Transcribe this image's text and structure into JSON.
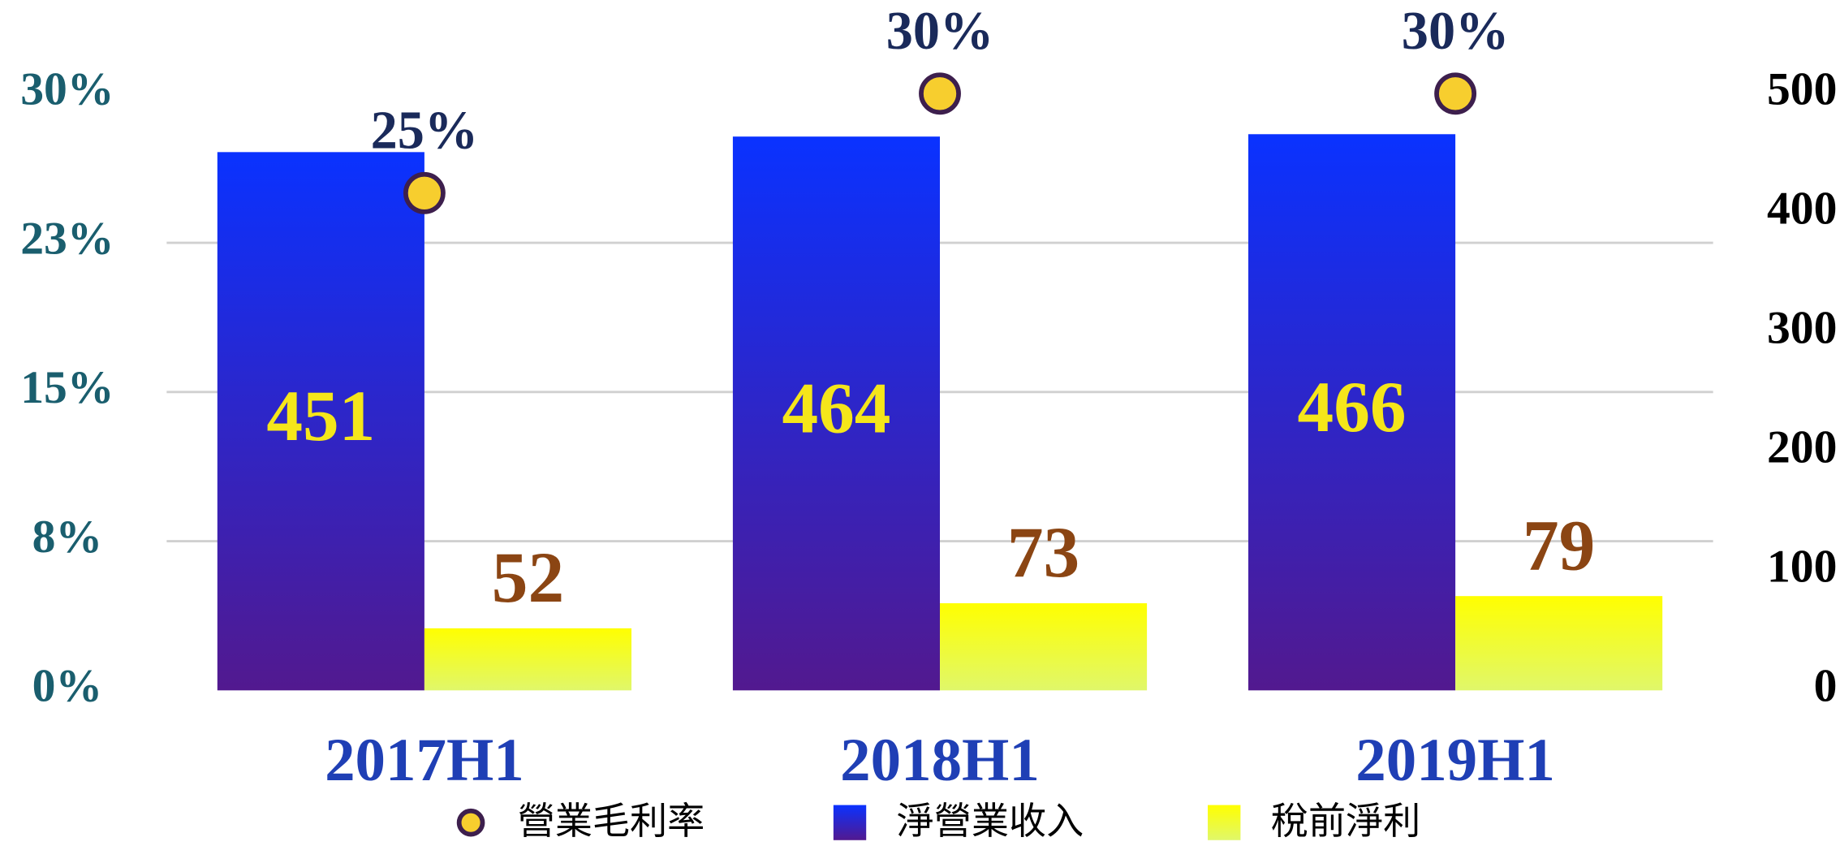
{
  "chart_data": {
    "type": "bar",
    "categories": [
      "2017H1",
      "2018H1",
      "2019H1"
    ],
    "series": [
      {
        "name": "營業毛利率",
        "type": "scatter",
        "axis": "y",
        "color": "#f7ce2e",
        "values": [
          25,
          30,
          30
        ],
        "value_labels": [
          "25%",
          "30%",
          "30%"
        ]
      },
      {
        "name": "淨營業收入",
        "type": "bar",
        "axis": "y2",
        "color": "#0a32ff",
        "values": [
          451,
          464,
          466
        ]
      },
      {
        "name": "稅前淨利",
        "type": "bar",
        "axis": "y2",
        "color": "#ffff00",
        "values": [
          52,
          73,
          79
        ]
      }
    ],
    "ylim": [
      0,
      30
    ],
    "yticks": [
      {
        "value": 0,
        "label": "0%"
      },
      {
        "value": 7.5,
        "label": "8%"
      },
      {
        "value": 15,
        "label": "15%"
      },
      {
        "value": 22.5,
        "label": "23%"
      },
      {
        "value": 30,
        "label": "30%"
      }
    ],
    "y2lim": [
      0,
      500
    ],
    "y2ticks": [
      0,
      100,
      200,
      300,
      400,
      500
    ],
    "grid": true,
    "legend": "bottom"
  }
}
